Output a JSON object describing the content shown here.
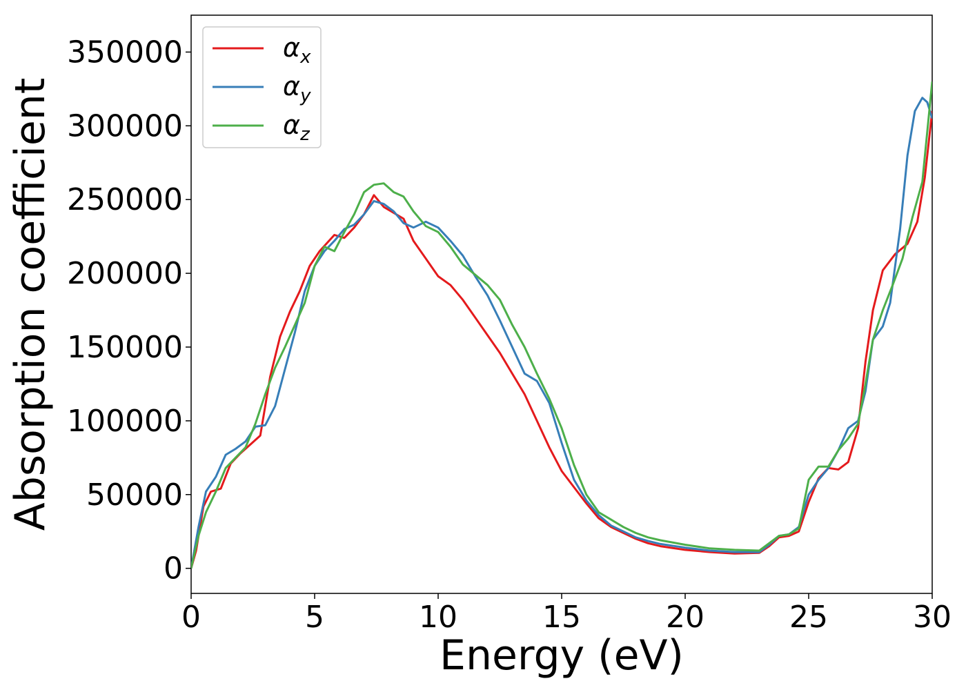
{
  "chart_data": {
    "type": "line",
    "xlabel": "Energy (eV)",
    "ylabel": "Absorption coefficient",
    "xlim": [
      0,
      30
    ],
    "ylim": [
      -17000,
      375000
    ],
    "x_ticks": [
      0,
      5,
      10,
      15,
      20,
      25,
      30
    ],
    "y_ticks": [
      0,
      50000,
      100000,
      150000,
      200000,
      250000,
      300000,
      350000
    ],
    "grid": false,
    "legend_position": "top-left",
    "series": [
      {
        "name": "α",
        "sub": "x",
        "color": "#e41a1c",
        "points": [
          [
            0,
            0
          ],
          [
            0.2,
            12000
          ],
          [
            0.5,
            42000
          ],
          [
            0.8,
            52000
          ],
          [
            1.2,
            54000
          ],
          [
            1.6,
            71000
          ],
          [
            2.0,
            78000
          ],
          [
            2.4,
            84000
          ],
          [
            2.8,
            90000
          ],
          [
            3.2,
            130000
          ],
          [
            3.6,
            157000
          ],
          [
            4.0,
            174000
          ],
          [
            4.4,
            188000
          ],
          [
            4.8,
            205000
          ],
          [
            5.2,
            215000
          ],
          [
            5.8,
            226000
          ],
          [
            6.2,
            224000
          ],
          [
            6.6,
            231000
          ],
          [
            7.0,
            240000
          ],
          [
            7.4,
            253000
          ],
          [
            7.8,
            245000
          ],
          [
            8.2,
            241000
          ],
          [
            8.6,
            237000
          ],
          [
            9.0,
            222000
          ],
          [
            9.5,
            210000
          ],
          [
            10.0,
            198000
          ],
          [
            10.5,
            192000
          ],
          [
            11.0,
            182000
          ],
          [
            11.5,
            170000
          ],
          [
            12.0,
            158000
          ],
          [
            12.5,
            146000
          ],
          [
            13.0,
            132000
          ],
          [
            13.5,
            118000
          ],
          [
            14.0,
            100000
          ],
          [
            14.5,
            82000
          ],
          [
            15.0,
            66000
          ],
          [
            15.5,
            55000
          ],
          [
            16.0,
            44000
          ],
          [
            16.5,
            34000
          ],
          [
            17.0,
            28000
          ],
          [
            17.5,
            24000
          ],
          [
            18.0,
            20000
          ],
          [
            18.5,
            17000
          ],
          [
            19.0,
            15000
          ],
          [
            20.0,
            12500
          ],
          [
            21.0,
            11000
          ],
          [
            22.0,
            10000
          ],
          [
            23.0,
            10500
          ],
          [
            23.4,
            15000
          ],
          [
            23.8,
            21000
          ],
          [
            24.2,
            22000
          ],
          [
            24.6,
            25000
          ],
          [
            25.0,
            45000
          ],
          [
            25.4,
            61000
          ],
          [
            25.8,
            68000
          ],
          [
            26.2,
            67000
          ],
          [
            26.6,
            72000
          ],
          [
            27.0,
            95000
          ],
          [
            27.3,
            140000
          ],
          [
            27.6,
            175000
          ],
          [
            28.0,
            202000
          ],
          [
            28.5,
            213000
          ],
          [
            29.0,
            220000
          ],
          [
            29.4,
            235000
          ],
          [
            29.7,
            265000
          ],
          [
            30.0,
            310000
          ]
        ]
      },
      {
        "name": "α",
        "sub": "y",
        "color": "#377eb8",
        "points": [
          [
            0,
            0
          ],
          [
            0.3,
            28000
          ],
          [
            0.6,
            52000
          ],
          [
            1.0,
            62000
          ],
          [
            1.4,
            77000
          ],
          [
            1.8,
            81000
          ],
          [
            2.2,
            86000
          ],
          [
            2.6,
            96000
          ],
          [
            3.0,
            97000
          ],
          [
            3.4,
            110000
          ],
          [
            3.8,
            135000
          ],
          [
            4.2,
            160000
          ],
          [
            4.6,
            188000
          ],
          [
            5.0,
            205000
          ],
          [
            5.4,
            215000
          ],
          [
            5.8,
            222000
          ],
          [
            6.2,
            230000
          ],
          [
            6.6,
            233000
          ],
          [
            7.0,
            240000
          ],
          [
            7.4,
            249000
          ],
          [
            7.8,
            247000
          ],
          [
            8.2,
            242000
          ],
          [
            8.6,
            234000
          ],
          [
            9.0,
            231000
          ],
          [
            9.5,
            235000
          ],
          [
            10.0,
            231000
          ],
          [
            10.5,
            222000
          ],
          [
            11.0,
            212000
          ],
          [
            11.5,
            198000
          ],
          [
            12.0,
            185000
          ],
          [
            12.5,
            168000
          ],
          [
            13.0,
            150000
          ],
          [
            13.5,
            132000
          ],
          [
            14.0,
            127000
          ],
          [
            14.5,
            112000
          ],
          [
            15.0,
            85000
          ],
          [
            15.5,
            60000
          ],
          [
            16.0,
            46000
          ],
          [
            16.5,
            36000
          ],
          [
            17.0,
            29000
          ],
          [
            17.5,
            25000
          ],
          [
            18.0,
            21000
          ],
          [
            18.5,
            18500
          ],
          [
            19.0,
            16500
          ],
          [
            20.0,
            14000
          ],
          [
            21.0,
            12000
          ],
          [
            22.0,
            11000
          ],
          [
            23.0,
            11000
          ],
          [
            23.4,
            16000
          ],
          [
            23.8,
            22000
          ],
          [
            24.2,
            23000
          ],
          [
            24.6,
            28000
          ],
          [
            25.0,
            50000
          ],
          [
            25.4,
            60000
          ],
          [
            25.8,
            68000
          ],
          [
            26.2,
            80000
          ],
          [
            26.6,
            95000
          ],
          [
            27.0,
            100000
          ],
          [
            27.3,
            120000
          ],
          [
            27.6,
            155000
          ],
          [
            28.0,
            164000
          ],
          [
            28.3,
            180000
          ],
          [
            28.7,
            230000
          ],
          [
            29.0,
            280000
          ],
          [
            29.3,
            310000
          ],
          [
            29.6,
            319000
          ],
          [
            29.8,
            316000
          ],
          [
            30.0,
            305000
          ]
        ]
      },
      {
        "name": "α",
        "sub": "z",
        "color": "#4daf4a",
        "points": [
          [
            0,
            0
          ],
          [
            0.3,
            22000
          ],
          [
            0.6,
            38000
          ],
          [
            1.0,
            52000
          ],
          [
            1.4,
            68000
          ],
          [
            1.8,
            75000
          ],
          [
            2.2,
            82000
          ],
          [
            2.6,
            98000
          ],
          [
            3.0,
            118000
          ],
          [
            3.4,
            136000
          ],
          [
            3.8,
            150000
          ],
          [
            4.2,
            165000
          ],
          [
            4.6,
            180000
          ],
          [
            5.0,
            205000
          ],
          [
            5.4,
            218000
          ],
          [
            5.8,
            215000
          ],
          [
            6.2,
            228000
          ],
          [
            6.6,
            240000
          ],
          [
            7.0,
            255000
          ],
          [
            7.4,
            260000
          ],
          [
            7.8,
            261000
          ],
          [
            8.2,
            255000
          ],
          [
            8.6,
            252000
          ],
          [
            9.0,
            242000
          ],
          [
            9.5,
            232000
          ],
          [
            10.0,
            228000
          ],
          [
            10.5,
            218000
          ],
          [
            11.0,
            206000
          ],
          [
            11.5,
            199000
          ],
          [
            12.0,
            192000
          ],
          [
            12.5,
            182000
          ],
          [
            13.0,
            165000
          ],
          [
            13.5,
            150000
          ],
          [
            14.0,
            132000
          ],
          [
            14.5,
            115000
          ],
          [
            15.0,
            95000
          ],
          [
            15.5,
            70000
          ],
          [
            16.0,
            50000
          ],
          [
            16.5,
            38000
          ],
          [
            17.0,
            33000
          ],
          [
            17.5,
            28000
          ],
          [
            18.0,
            24000
          ],
          [
            18.5,
            21000
          ],
          [
            19.0,
            19000
          ],
          [
            20.0,
            16000
          ],
          [
            21.0,
            13500
          ],
          [
            22.0,
            12500
          ],
          [
            23.0,
            12000
          ],
          [
            23.4,
            17000
          ],
          [
            23.8,
            22000
          ],
          [
            24.2,
            23000
          ],
          [
            24.6,
            27000
          ],
          [
            25.0,
            60000
          ],
          [
            25.4,
            69000
          ],
          [
            25.8,
            69000
          ],
          [
            26.2,
            80000
          ],
          [
            26.6,
            88000
          ],
          [
            27.0,
            98000
          ],
          [
            27.3,
            125000
          ],
          [
            27.6,
            155000
          ],
          [
            28.0,
            175000
          ],
          [
            28.4,
            192000
          ],
          [
            28.8,
            210000
          ],
          [
            29.2,
            238000
          ],
          [
            29.6,
            262000
          ],
          [
            30.0,
            330000
          ]
        ]
      }
    ]
  }
}
